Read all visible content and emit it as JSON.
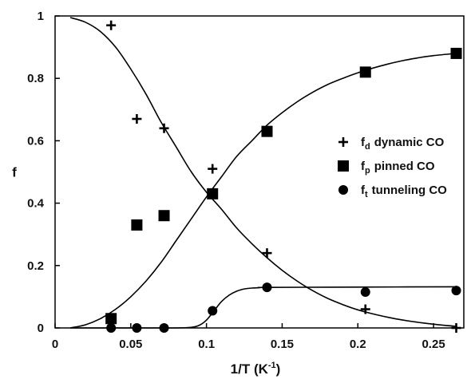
{
  "chart_data": {
    "type": "scatter",
    "title": "",
    "xlabel_main": "1/T (K",
    "xlabel_sup": "-1",
    "xlabel_close": ")",
    "ylabel": "f",
    "xlim": [
      0,
      0.27
    ],
    "ylim": [
      0,
      1
    ],
    "x_ticks": [
      0,
      0.05,
      0.1,
      0.15,
      0.2,
      0.25
    ],
    "x_tick_labels": [
      "0",
      "0.05",
      "0.1",
      "0.15",
      "0.2",
      "0.25"
    ],
    "y_ticks": [
      0,
      0.2,
      0.4,
      0.6,
      0.8,
      1
    ],
    "y_tick_labels": [
      "0",
      "0.2",
      "0.4",
      "0.6",
      "0.8",
      "1"
    ],
    "grid": false,
    "legend_position": "right",
    "series": [
      {
        "key": "dynamic",
        "symbol": "f",
        "subscript": "d",
        "name": "dynamic CO",
        "marker": "plus",
        "x": [
          0.037,
          0.054,
          0.072,
          0.104,
          0.14,
          0.205,
          0.265
        ],
        "y": [
          0.97,
          0.67,
          0.64,
          0.51,
          0.24,
          0.06,
          0.0
        ]
      },
      {
        "key": "pinned",
        "symbol": "f",
        "subscript": "p",
        "name": "pinned CO",
        "marker": "square",
        "x": [
          0.037,
          0.054,
          0.072,
          0.104,
          0.14,
          0.205,
          0.265
        ],
        "y": [
          0.03,
          0.33,
          0.36,
          0.43,
          0.63,
          0.82,
          0.88
        ]
      },
      {
        "key": "tunneling",
        "symbol": "f",
        "subscript": "t",
        "name": "tunneling CO",
        "marker": "circle",
        "x": [
          0.037,
          0.054,
          0.072,
          0.104,
          0.14,
          0.205,
          0.265
        ],
        "y": [
          0.0,
          0.0,
          0.0,
          0.055,
          0.13,
          0.115,
          0.12
        ]
      }
    ],
    "fit_curves": [
      {
        "key": "dynamic-fit",
        "x": [
          0.01,
          0.02,
          0.03,
          0.04,
          0.05,
          0.06,
          0.07,
          0.08,
          0.09,
          0.1,
          0.11,
          0.12,
          0.13,
          0.14,
          0.15,
          0.16,
          0.17,
          0.18,
          0.19,
          0.2,
          0.21,
          0.22,
          0.23,
          0.24,
          0.25,
          0.265
        ],
        "y": [
          0.995,
          0.98,
          0.95,
          0.9,
          0.83,
          0.75,
          0.66,
          0.58,
          0.5,
          0.435,
          0.38,
          0.32,
          0.27,
          0.225,
          0.185,
          0.15,
          0.12,
          0.095,
          0.075,
          0.058,
          0.045,
          0.034,
          0.025,
          0.018,
          0.012,
          0.005
        ]
      },
      {
        "key": "pinned-fit",
        "x": [
          0.01,
          0.02,
          0.03,
          0.04,
          0.05,
          0.06,
          0.07,
          0.08,
          0.09,
          0.1,
          0.11,
          0.12,
          0.13,
          0.14,
          0.15,
          0.16,
          0.17,
          0.18,
          0.19,
          0.2,
          0.21,
          0.22,
          0.23,
          0.24,
          0.25,
          0.265
        ],
        "y": [
          0.0,
          0.01,
          0.03,
          0.06,
          0.1,
          0.15,
          0.21,
          0.28,
          0.35,
          0.42,
          0.485,
          0.55,
          0.6,
          0.65,
          0.69,
          0.725,
          0.755,
          0.78,
          0.8,
          0.818,
          0.833,
          0.846,
          0.857,
          0.866,
          0.873,
          0.88
        ]
      },
      {
        "key": "tunneling-fit",
        "x": [
          0.01,
          0.05,
          0.08,
          0.09,
          0.095,
          0.1,
          0.105,
          0.11,
          0.115,
          0.12,
          0.125,
          0.13,
          0.135,
          0.14,
          0.2,
          0.265
        ],
        "y": [
          0.0,
          0.0,
          0.0,
          0.002,
          0.008,
          0.025,
          0.055,
          0.085,
          0.105,
          0.118,
          0.125,
          0.128,
          0.129,
          0.13,
          0.131,
          0.132
        ]
      }
    ]
  }
}
